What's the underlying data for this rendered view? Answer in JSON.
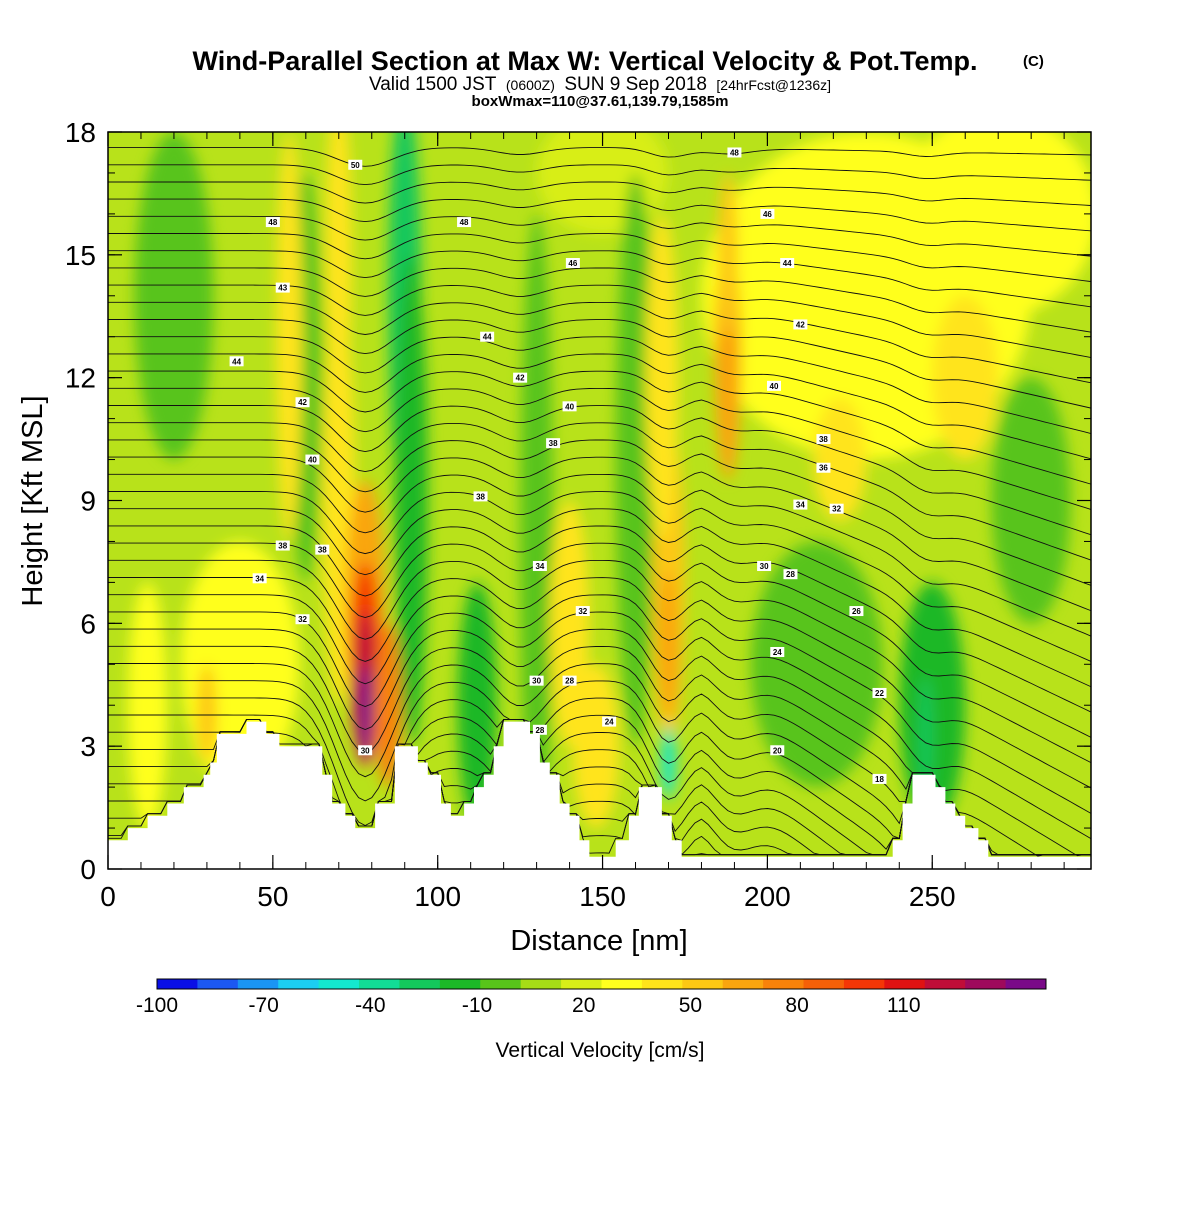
{
  "title": {
    "main": "Wind-Parallel Section at Max W: Vertical Velocity & Pot.Temp.",
    "copyright": "(C)",
    "valid_prefix": "Valid 1500 JST",
    "valid_zulu": "(0600Z)",
    "valid_date": "SUN 9 Sep 2018",
    "forecast": "[24hrFcst@1236z]",
    "box_info": "boxWmax=110@37.61,139.79,1585m"
  },
  "chart_data": {
    "type": "heatmap",
    "xlabel": "Distance [nm]",
    "ylabel": "Height [Kft MSL]",
    "xlim": [
      0,
      300
    ],
    "ylim": [
      0,
      18
    ],
    "x_ticks": [
      0,
      50,
      100,
      150,
      200,
      250
    ],
    "y_ticks": [
      0,
      3,
      6,
      9,
      12,
      15,
      18
    ],
    "colorbar": {
      "title": "Vertical Velocity [cm/s]",
      "range": [
        -100,
        140
      ],
      "step": 10,
      "tick_values": [
        -100,
        -70,
        -40,
        -10,
        20,
        50,
        80,
        110
      ],
      "tick_labels": [
        "-100",
        "-70",
        "-40",
        "-10",
        "20",
        "50",
        "80",
        "110"
      ],
      "colors": [
        "#0a10e6",
        "#1c58f2",
        "#1a95f4",
        "#1ccef2",
        "#14e8cf",
        "#12dc96",
        "#14c85c",
        "#1cb828",
        "#58c41a",
        "#a6dc16",
        "#d8ee18",
        "#ffff1e",
        "#ffe41a",
        "#fdc814",
        "#faa50f",
        "#f8820a",
        "#f56008",
        "#f43606",
        "#e01212",
        "#c00d38",
        "#9e0a5c",
        "#7a0a88"
      ]
    },
    "terrain_nm_kft": [
      [
        0,
        0.7
      ],
      [
        6,
        0.7
      ],
      [
        6,
        1.0
      ],
      [
        12,
        1.0
      ],
      [
        12,
        1.3
      ],
      [
        18,
        1.3
      ],
      [
        18,
        1.6
      ],
      [
        23,
        1.6
      ],
      [
        23,
        2.0
      ],
      [
        29,
        2.0
      ],
      [
        29,
        2.3
      ],
      [
        31,
        2.3
      ],
      [
        31,
        2.6
      ],
      [
        33,
        2.6
      ],
      [
        33,
        3.3
      ],
      [
        42,
        3.3
      ],
      [
        42,
        3.6
      ],
      [
        48,
        3.6
      ],
      [
        48,
        3.3
      ],
      [
        52,
        3.3
      ],
      [
        52,
        3.0
      ],
      [
        65,
        3.0
      ],
      [
        65,
        2.3
      ],
      [
        68,
        2.3
      ],
      [
        68,
        1.6
      ],
      [
        72,
        1.6
      ],
      [
        72,
        1.3
      ],
      [
        75,
        1.3
      ],
      [
        75,
        1.0
      ],
      [
        81,
        1.0
      ],
      [
        81,
        1.6
      ],
      [
        87,
        1.6
      ],
      [
        87,
        3.0
      ],
      [
        94,
        3.0
      ],
      [
        94,
        2.6
      ],
      [
        97,
        2.6
      ],
      [
        97,
        2.3
      ],
      [
        101,
        2.3
      ],
      [
        101,
        1.6
      ],
      [
        104,
        1.6
      ],
      [
        104,
        1.3
      ],
      [
        108,
        1.3
      ],
      [
        108,
        1.6
      ],
      [
        111,
        1.6
      ],
      [
        111,
        2.0
      ],
      [
        114,
        2.0
      ],
      [
        114,
        2.3
      ],
      [
        117,
        2.3
      ],
      [
        117,
        3.0
      ],
      [
        120,
        3.0
      ],
      [
        120,
        3.6
      ],
      [
        128,
        3.6
      ],
      [
        128,
        3.3
      ],
      [
        131,
        3.3
      ],
      [
        131,
        2.6
      ],
      [
        134,
        2.6
      ],
      [
        134,
        2.3
      ],
      [
        137,
        2.3
      ],
      [
        137,
        1.6
      ],
      [
        140,
        1.6
      ],
      [
        140,
        1.3
      ],
      [
        143,
        1.3
      ],
      [
        143,
        0.7
      ],
      [
        146,
        0.7
      ],
      [
        146,
        0.3
      ],
      [
        154,
        0.3
      ],
      [
        154,
        0.7
      ],
      [
        158,
        0.7
      ],
      [
        158,
        1.3
      ],
      [
        161,
        1.3
      ],
      [
        161,
        2.0
      ],
      [
        168,
        2.0
      ],
      [
        168,
        1.3
      ],
      [
        171,
        1.3
      ],
      [
        171,
        0.7
      ],
      [
        174,
        0.7
      ],
      [
        174,
        0.3
      ],
      [
        238,
        0.3
      ],
      [
        238,
        0.7
      ],
      [
        241,
        0.7
      ],
      [
        241,
        1.6
      ],
      [
        244,
        1.6
      ],
      [
        244,
        2.3
      ],
      [
        251,
        2.3
      ],
      [
        251,
        2.0
      ],
      [
        254,
        2.0
      ],
      [
        254,
        1.6
      ],
      [
        257,
        1.6
      ],
      [
        257,
        1.3
      ],
      [
        260,
        1.3
      ],
      [
        260,
        1.0
      ],
      [
        264,
        1.0
      ],
      [
        264,
        0.7
      ],
      [
        267,
        0.7
      ],
      [
        267,
        0.3
      ],
      [
        300,
        0.3
      ]
    ],
    "theta_contour_labels": [
      {
        "value": "50",
        "x": 75,
        "y": 17.2
      },
      {
        "value": "48",
        "x": 50,
        "y": 15.8
      },
      {
        "value": "48",
        "x": 108,
        "y": 15.8
      },
      {
        "value": "48",
        "x": 190,
        "y": 17.5
      },
      {
        "value": "46",
        "x": 141,
        "y": 14.8
      },
      {
        "value": "46",
        "x": 200,
        "y": 16.0
      },
      {
        "value": "44",
        "x": 39,
        "y": 12.4
      },
      {
        "value": "44",
        "x": 115,
        "y": 13.0
      },
      {
        "value": "44",
        "x": 206,
        "y": 14.8
      },
      {
        "value": "43",
        "x": 53,
        "y": 14.2
      },
      {
        "value": "42",
        "x": 59,
        "y": 11.4
      },
      {
        "value": "42",
        "x": 125,
        "y": 12.0
      },
      {
        "value": "42",
        "x": 210,
        "y": 13.3
      },
      {
        "value": "40",
        "x": 62,
        "y": 10.0
      },
      {
        "value": "40",
        "x": 140,
        "y": 11.3
      },
      {
        "value": "40",
        "x": 202,
        "y": 11.8
      },
      {
        "value": "38",
        "x": 53,
        "y": 7.9
      },
      {
        "value": "38",
        "x": 65,
        "y": 7.8
      },
      {
        "value": "38",
        "x": 113,
        "y": 9.1
      },
      {
        "value": "38",
        "x": 135,
        "y": 10.4
      },
      {
        "value": "38",
        "x": 217,
        "y": 10.5
      },
      {
        "value": "36",
        "x": 217,
        "y": 9.8
      },
      {
        "value": "34",
        "x": 46,
        "y": 7.1
      },
      {
        "value": "34",
        "x": 131,
        "y": 7.4
      },
      {
        "value": "34",
        "x": 210,
        "y": 8.9
      },
      {
        "value": "32",
        "x": 59,
        "y": 6.1
      },
      {
        "value": "32",
        "x": 144,
        "y": 6.3
      },
      {
        "value": "32",
        "x": 221,
        "y": 8.8
      },
      {
        "value": "30",
        "x": 78,
        "y": 2.9
      },
      {
        "value": "30",
        "x": 130,
        "y": 4.6
      },
      {
        "value": "30",
        "x": 199,
        "y": 7.4
      },
      {
        "value": "28",
        "x": 140,
        "y": 4.6
      },
      {
        "value": "28",
        "x": 131,
        "y": 3.4
      },
      {
        "value": "28",
        "x": 207,
        "y": 7.2
      },
      {
        "value": "26",
        "x": 227,
        "y": 6.3
      },
      {
        "value": "24",
        "x": 152,
        "y": 3.6
      },
      {
        "value": "24",
        "x": 203,
        "y": 5.3
      },
      {
        "value": "22",
        "x": 234,
        "y": 4.3
      },
      {
        "value": "20",
        "x": 203,
        "y": 2.9
      },
      {
        "value": "18",
        "x": 234,
        "y": 2.2
      }
    ]
  }
}
